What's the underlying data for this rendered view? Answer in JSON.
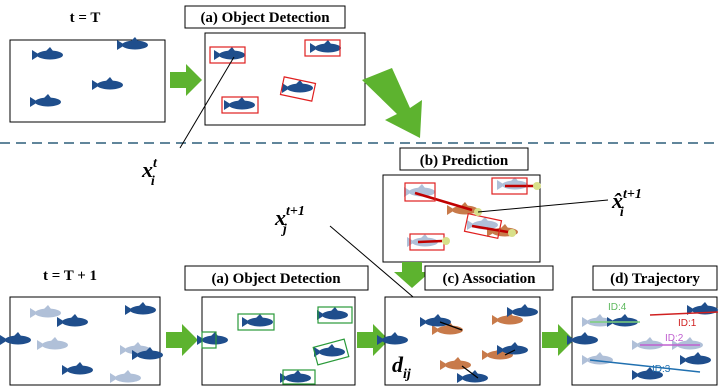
{
  "top": {
    "time_label": "t = T",
    "stage_a": "(a) Object Detection"
  },
  "middle": {
    "stage_b": "(b) Prediction"
  },
  "bottom": {
    "time_label": "t = T + 1",
    "stage_a": "(a) Object Detection",
    "stage_c": "(c) Association",
    "stage_d": "(d) Trajectory"
  },
  "math": {
    "x_t": {
      "base": "x",
      "sub": "i",
      "sup": "t"
    },
    "x_hat": {
      "base": "x̂",
      "sub": "i",
      "sup": "t+1"
    },
    "x_next": {
      "base": "x",
      "sub": "j",
      "sup": "t+1"
    },
    "d": {
      "base": "d",
      "sub": "ij"
    }
  },
  "trajectory_ids": [
    "ID:4",
    "ID:1",
    "ID:2",
    "ID:3"
  ]
}
